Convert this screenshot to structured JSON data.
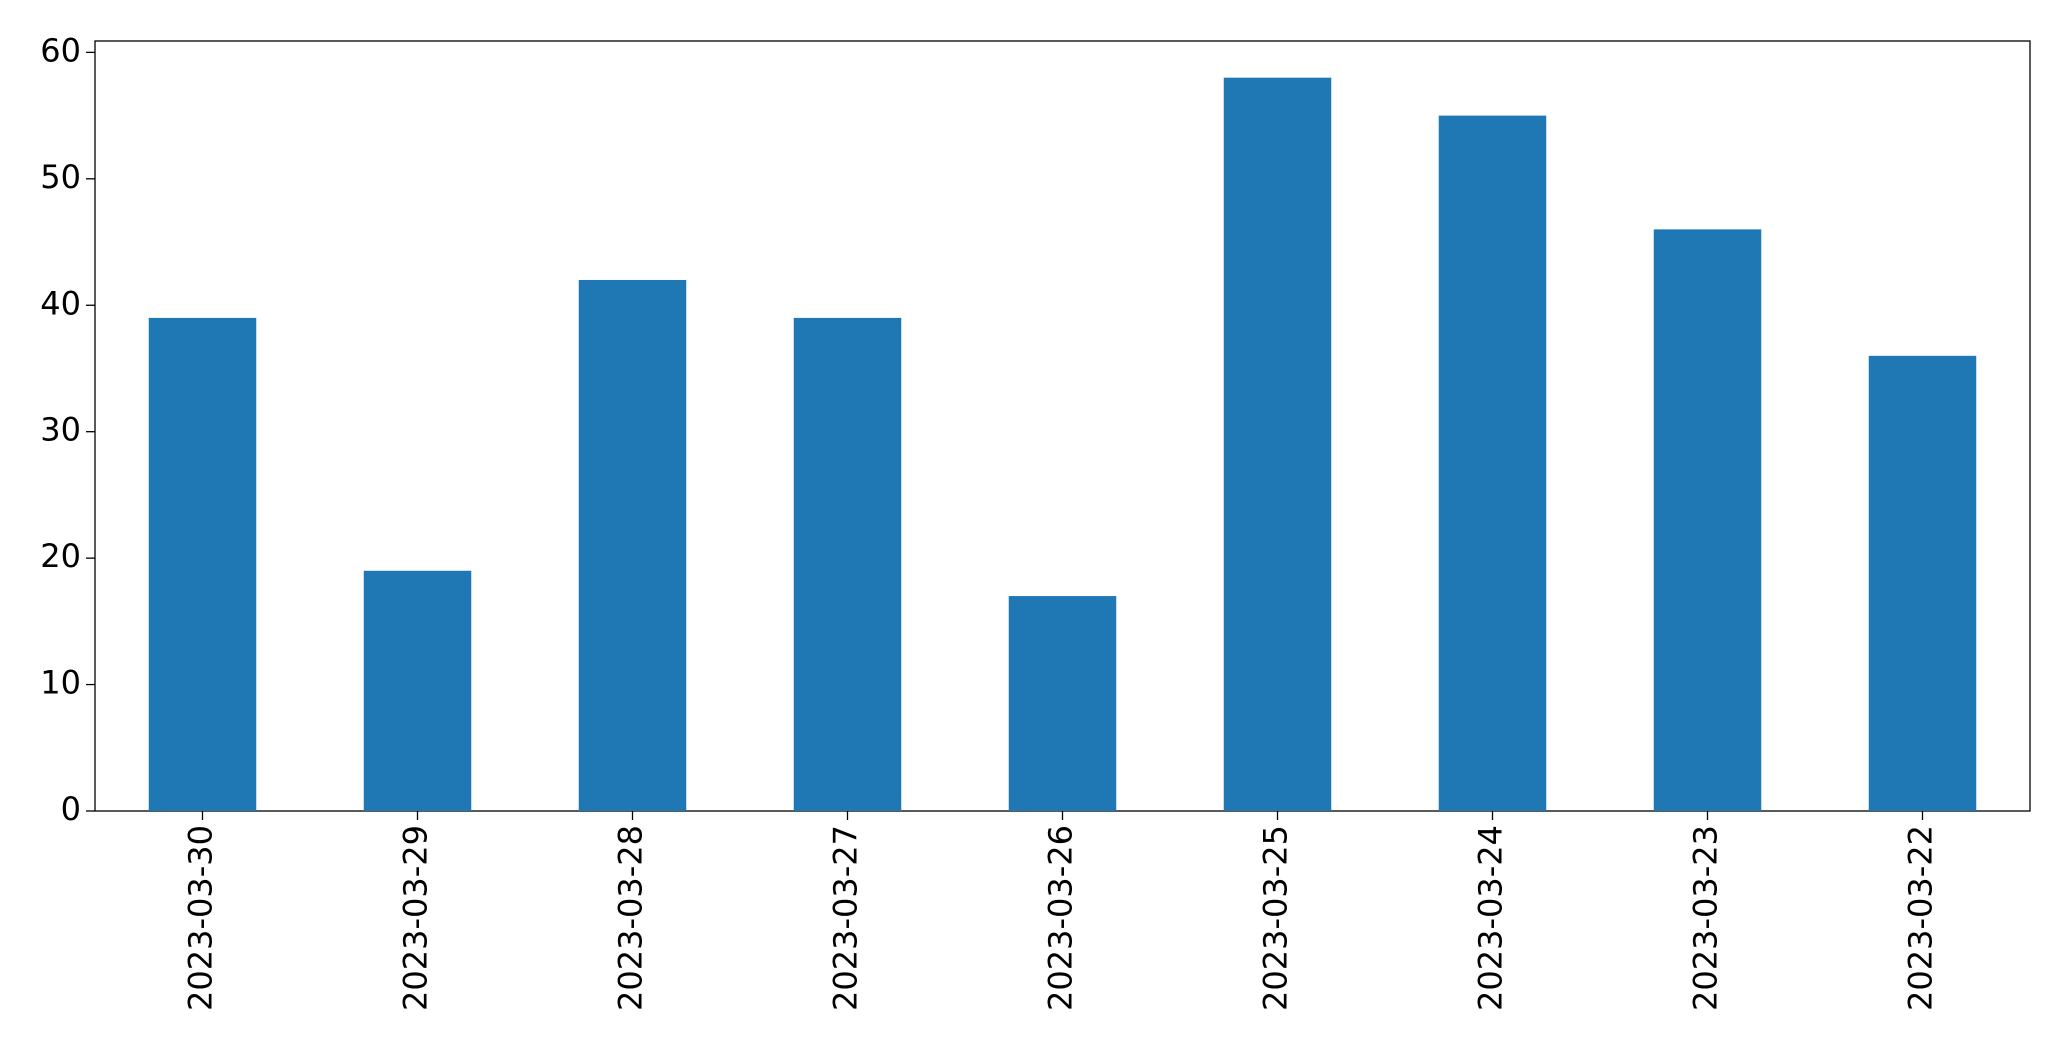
{
  "chart_data": {
    "type": "bar",
    "categories": [
      "2023-03-30",
      "2023-03-29",
      "2023-03-28",
      "2023-03-27",
      "2023-03-26",
      "2023-03-25",
      "2023-03-24",
      "2023-03-23",
      "2023-03-22"
    ],
    "values": [
      39,
      19,
      42,
      39,
      17,
      58,
      55,
      46,
      36
    ],
    "color": "#1f77b4",
    "ylim": [
      0,
      60.9
    ],
    "yticks": [
      0,
      10,
      20,
      30,
      40,
      50,
      60
    ],
    "grid": false
  }
}
